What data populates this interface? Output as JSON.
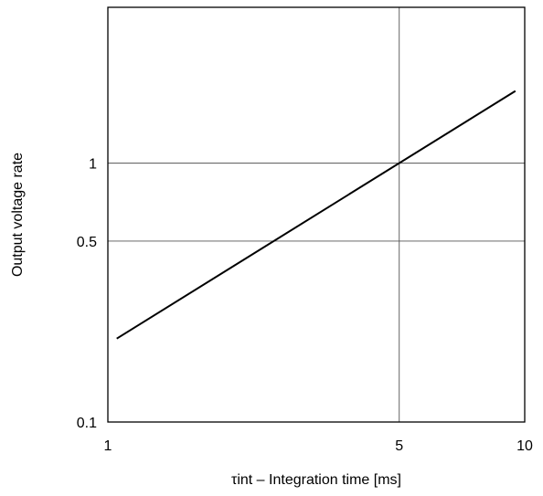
{
  "chart_data": {
    "type": "line",
    "xlabel": "τint – Integration time [ms]",
    "ylabel": "Output voltage rate",
    "x_scale": "log",
    "y_scale": "log",
    "xlim": [
      1,
      10
    ],
    "ylim": [
      0.1,
      4
    ],
    "x_ticks": [
      {
        "value": 1,
        "label": "1"
      },
      {
        "value": 5,
        "label": "5"
      },
      {
        "value": 10,
        "label": "10"
      }
    ],
    "y_ticks": [
      {
        "value": 0.1,
        "label": "0.1"
      },
      {
        "value": 0.5,
        "label": "0.5"
      },
      {
        "value": 1,
        "label": "1"
      }
    ],
    "grid": true,
    "series": [
      {
        "x": [
          1.05,
          9.5
        ],
        "y": [
          0.21,
          1.9
        ]
      }
    ],
    "colors": {
      "line": "#000000",
      "grid": "#555555",
      "frame": "#000000"
    }
  }
}
